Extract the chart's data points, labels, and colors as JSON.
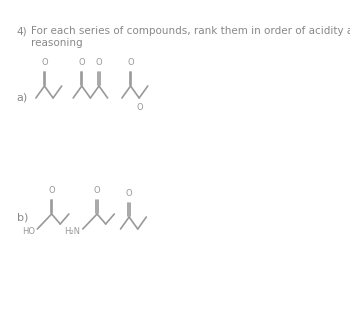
{
  "title_num": "4)",
  "title_text": "For each series of compounds, rank them in order of acidity and explain your\nreasoning",
  "label_a": "a)",
  "label_b": "b)",
  "text_color": "#888888",
  "line_color": "#999999",
  "bg_color": "#ffffff",
  "fontsize_title": 7.5,
  "fontsize_label": 8,
  "line_width": 1.2
}
